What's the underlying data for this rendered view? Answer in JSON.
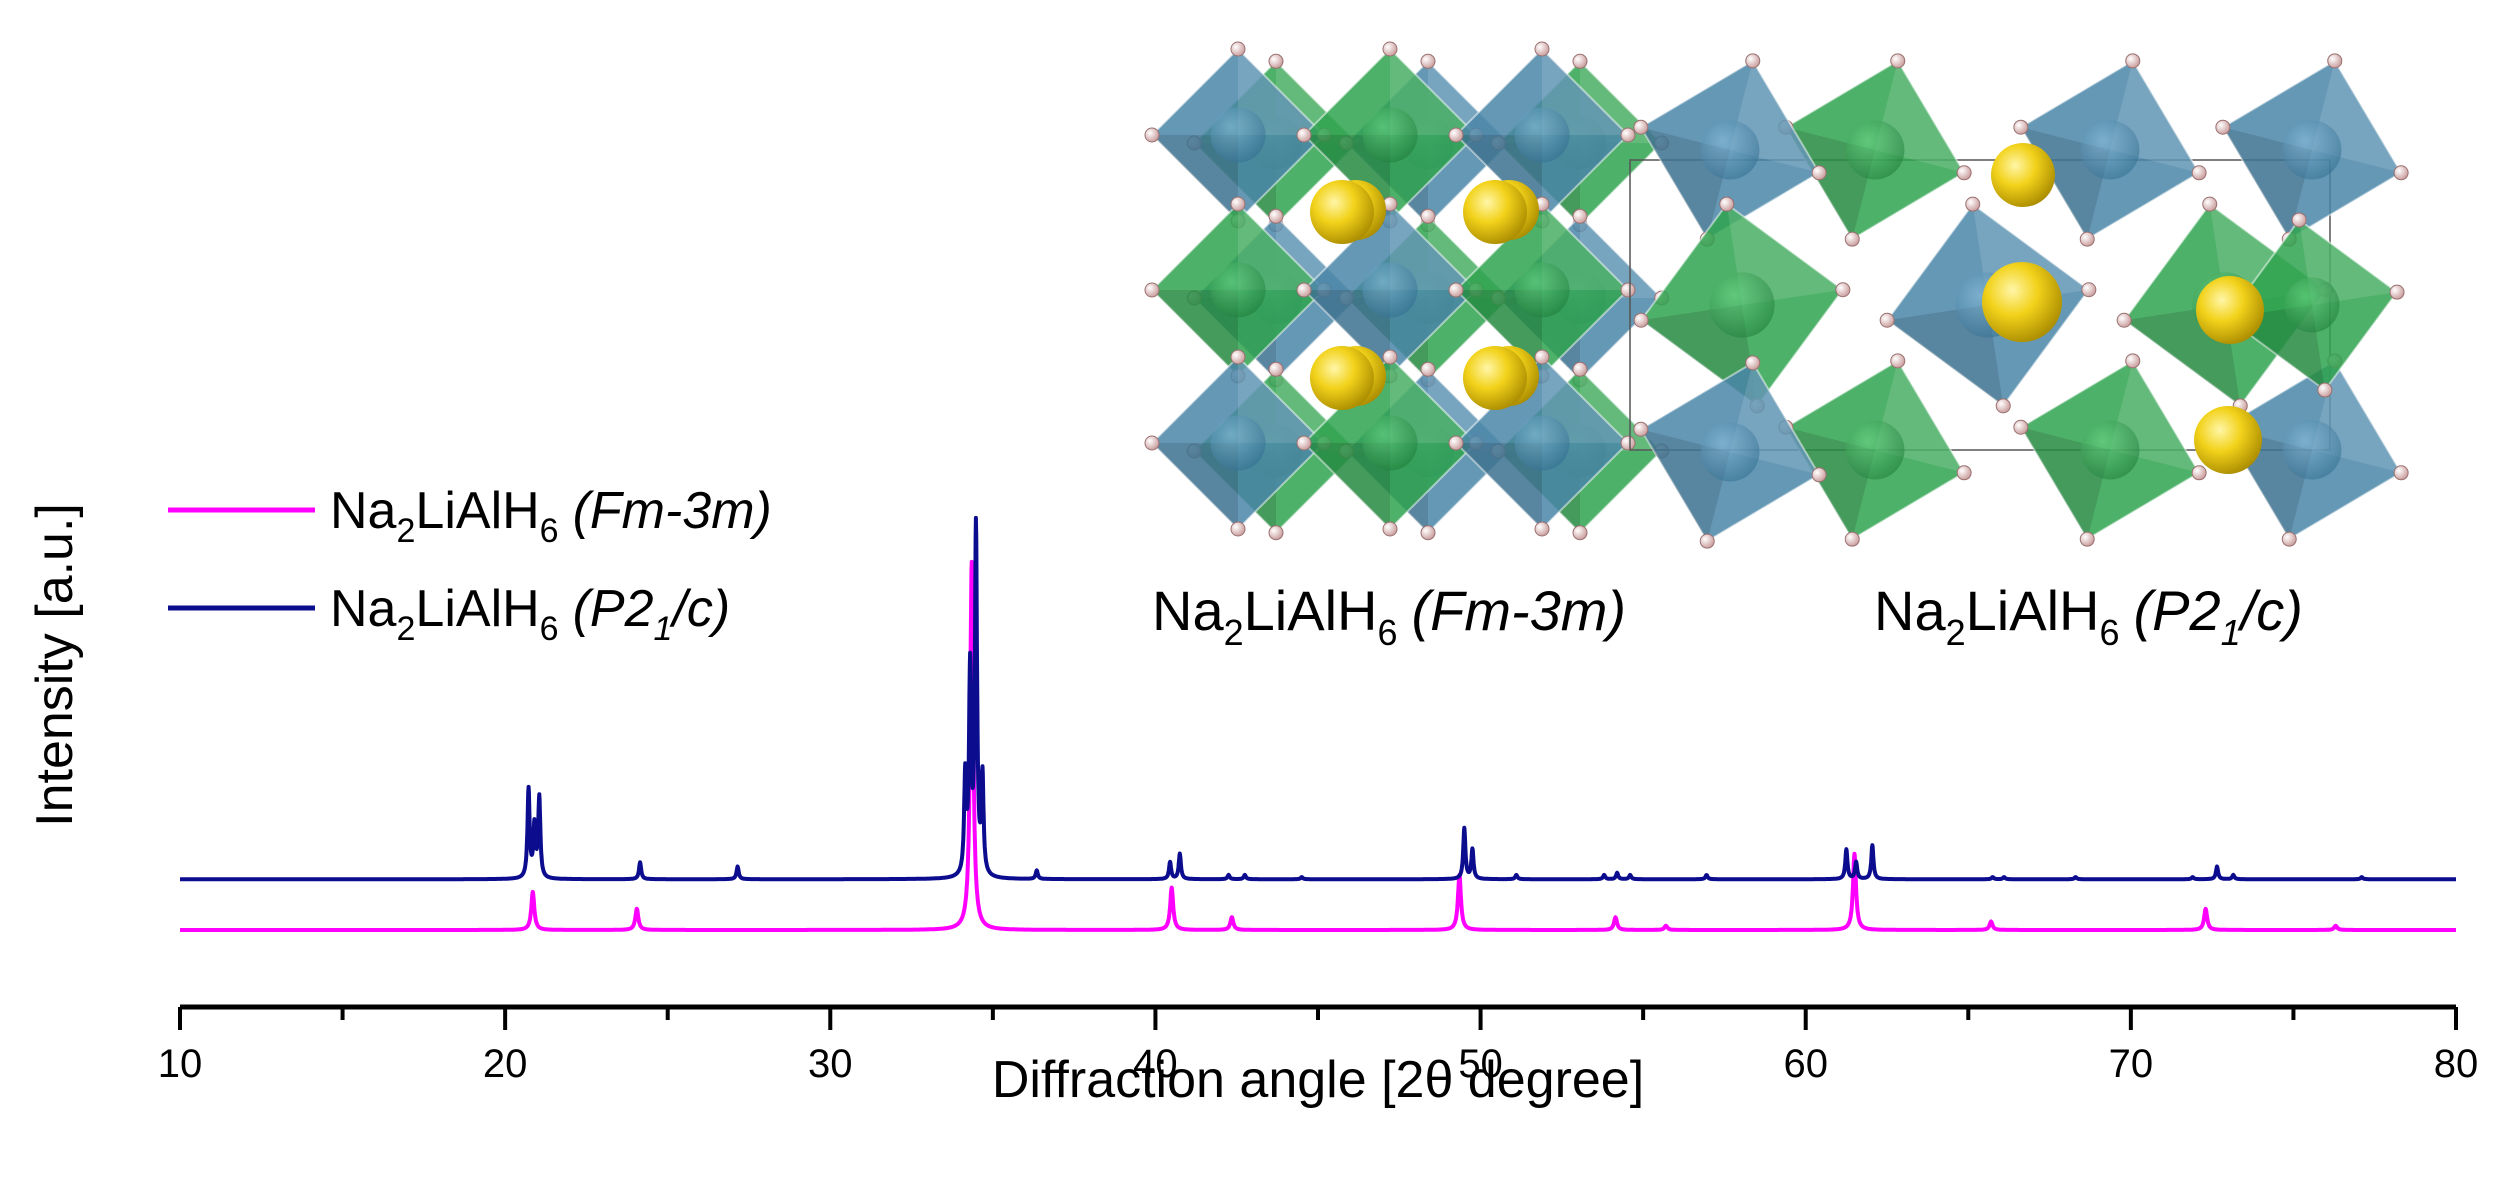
{
  "chart_data": {
    "type": "line",
    "title": "",
    "xlabel": "Diffraction angle [2θ degree]",
    "ylabel": "Intensity [a.u.]",
    "xlim": [
      10,
      80
    ],
    "ylim": [
      0,
      1.3
    ],
    "x_ticks": [
      10,
      20,
      30,
      40,
      50,
      60,
      70,
      80
    ],
    "x_minor_step": 5,
    "grid": false,
    "legend_position": "left",
    "series": [
      {
        "id": "fm3m",
        "name": "Na2LiAlH6 (Fm-3m)",
        "legend_formula": {
          "a": "Na",
          "a_sub": "2",
          "b": "LiAlH",
          "b_sub": "6"
        },
        "legend_group": "(Fm-3m)",
        "color": "#ff00ff",
        "baseline": 0.0,
        "peak_width": 0.07,
        "peaks": [
          [
            20.85,
            0.09
          ],
          [
            24.05,
            0.05
          ],
          [
            34.35,
            0.87
          ],
          [
            40.5,
            0.1
          ],
          [
            42.35,
            0.03
          ],
          [
            49.35,
            0.13
          ],
          [
            54.15,
            0.03
          ],
          [
            55.7,
            0.01
          ],
          [
            61.5,
            0.18
          ],
          [
            65.7,
            0.02
          ],
          [
            72.3,
            0.05
          ],
          [
            76.3,
            0.01
          ]
        ]
      },
      {
        "id": "p21c",
        "name": "Na2LiAlH6 (P21/c)",
        "legend_formula": {
          "a": "Na",
          "a_sub": "2",
          "b": "LiAlH",
          "b_sub": "6"
        },
        "legend_group": "(P2",
        "legend_group_sub": "1",
        "legend_group_end": "/c)",
        "color": "#0c0c8f",
        "baseline": 0.12,
        "peak_width": 0.05,
        "peaks": [
          [
            20.72,
            0.21
          ],
          [
            20.9,
            0.12
          ],
          [
            21.05,
            0.19
          ],
          [
            24.15,
            0.04
          ],
          [
            27.15,
            0.03
          ],
          [
            34.15,
            0.23
          ],
          [
            34.3,
            0.48
          ],
          [
            34.48,
            0.82
          ],
          [
            34.68,
            0.23
          ],
          [
            36.35,
            0.02
          ],
          [
            40.45,
            0.04
          ],
          [
            40.75,
            0.06
          ],
          [
            42.25,
            0.01
          ],
          [
            42.75,
            0.01
          ],
          [
            44.5,
            0.005
          ],
          [
            49.5,
            0.12
          ],
          [
            49.75,
            0.07
          ],
          [
            51.1,
            0.01
          ],
          [
            53.8,
            0.01
          ],
          [
            54.2,
            0.015
          ],
          [
            54.6,
            0.01
          ],
          [
            56.95,
            0.01
          ],
          [
            61.25,
            0.07
          ],
          [
            61.55,
            0.04
          ],
          [
            62.05,
            0.08
          ],
          [
            65.75,
            0.005
          ],
          [
            66.1,
            0.005
          ],
          [
            68.3,
            0.005
          ],
          [
            71.9,
            0.005
          ],
          [
            72.65,
            0.03
          ],
          [
            73.15,
            0.01
          ],
          [
            77.1,
            0.005
          ]
        ]
      }
    ],
    "structures": [
      {
        "id": "fm3m",
        "formula": {
          "a": "Na",
          "a_sub": "2",
          "b": "LiAlH",
          "b_sub": "6"
        },
        "group": "(Fm-3m)"
      },
      {
        "id": "p21c",
        "formula": {
          "a": "Na",
          "a_sub": "2",
          "b": "LiAlH",
          "b_sub": "6"
        },
        "group": "(P2",
        "group_sub": "1",
        "group_end": "/c)"
      }
    ]
  },
  "colors": {
    "axis": "#000000",
    "octa_blue": "#4a86a8",
    "octa_green": "#2fa34f",
    "sodium": "#f0d000",
    "hydrogen": "#f1cccc"
  }
}
